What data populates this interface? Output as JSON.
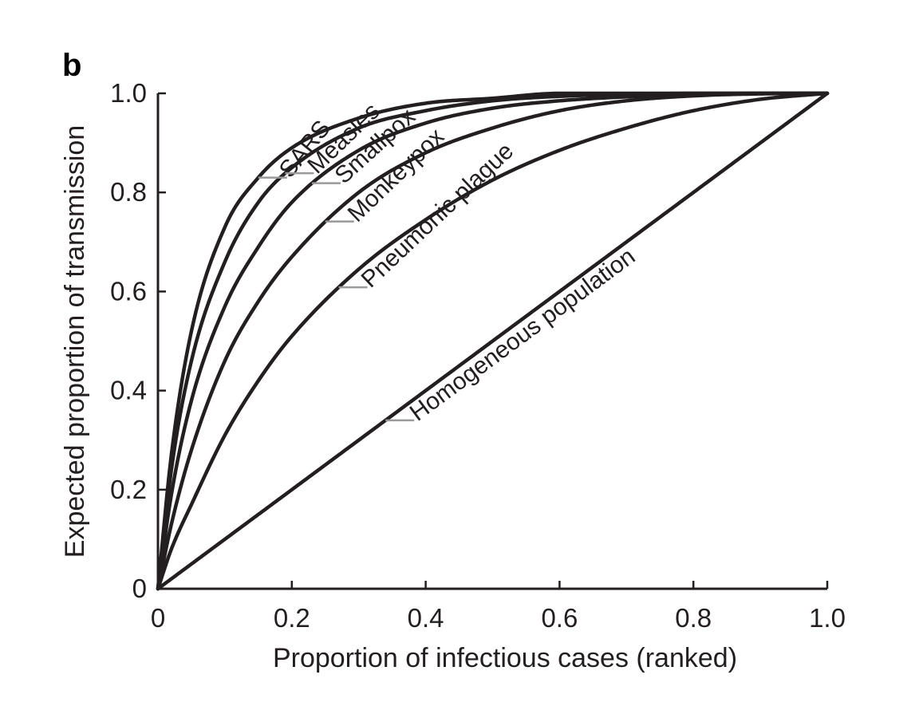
{
  "panel_label": "b",
  "chart_data": {
    "type": "line",
    "title": "",
    "xlabel": "Proportion of infectious cases (ranked)",
    "ylabel": "Expected proportion of transmission",
    "xlim": [
      0,
      1
    ],
    "ylim": [
      0,
      1
    ],
    "x_ticks": [
      "0",
      "0.2",
      "0.4",
      "0.6",
      "0.8",
      "1.0"
    ],
    "y_ticks": [
      "0",
      "0.2",
      "0.4",
      "0.6",
      "0.8",
      "1.0"
    ],
    "grid": false,
    "legend": "none",
    "x": [
      0,
      0.02,
      0.05,
      0.1,
      0.15,
      0.2,
      0.3,
      0.4,
      0.5,
      0.6,
      0.7,
      0.8,
      0.9,
      1.0
    ],
    "series": [
      {
        "name": "SARS",
        "values": [
          0,
          0.27,
          0.52,
          0.73,
          0.83,
          0.89,
          0.95,
          0.98,
          0.99,
          1.0,
          1.0,
          1.0,
          1.0,
          1.0
        ],
        "label_at": 0.15
      },
      {
        "name": "Measles",
        "values": [
          0,
          0.24,
          0.46,
          0.66,
          0.78,
          0.85,
          0.93,
          0.965,
          0.985,
          0.994,
          0.998,
          1.0,
          1.0,
          1.0
        ],
        "label_at": 0.19
      },
      {
        "name": "Smallpox",
        "values": [
          0,
          0.19,
          0.38,
          0.57,
          0.69,
          0.78,
          0.885,
          0.94,
          0.97,
          0.985,
          0.993,
          0.998,
          1.0,
          1.0
        ],
        "label_at": 0.23
      },
      {
        "name": "Monkeypox",
        "values": [
          0,
          0.13,
          0.28,
          0.46,
          0.58,
          0.67,
          0.8,
          0.88,
          0.93,
          0.965,
          0.985,
          0.995,
          0.999,
          1.0
        ],
        "label_at": 0.25
      },
      {
        "name": "Pneumonic plague",
        "values": [
          0,
          0.08,
          0.17,
          0.31,
          0.42,
          0.51,
          0.645,
          0.745,
          0.825,
          0.885,
          0.93,
          0.965,
          0.988,
          1.0
        ],
        "label_at": 0.27
      },
      {
        "name": "Homogeneous population",
        "values": [
          0,
          0.02,
          0.05,
          0.1,
          0.15,
          0.2,
          0.3,
          0.4,
          0.5,
          0.6,
          0.7,
          0.8,
          0.9,
          1.0
        ],
        "label_at": 0.34
      }
    ]
  }
}
